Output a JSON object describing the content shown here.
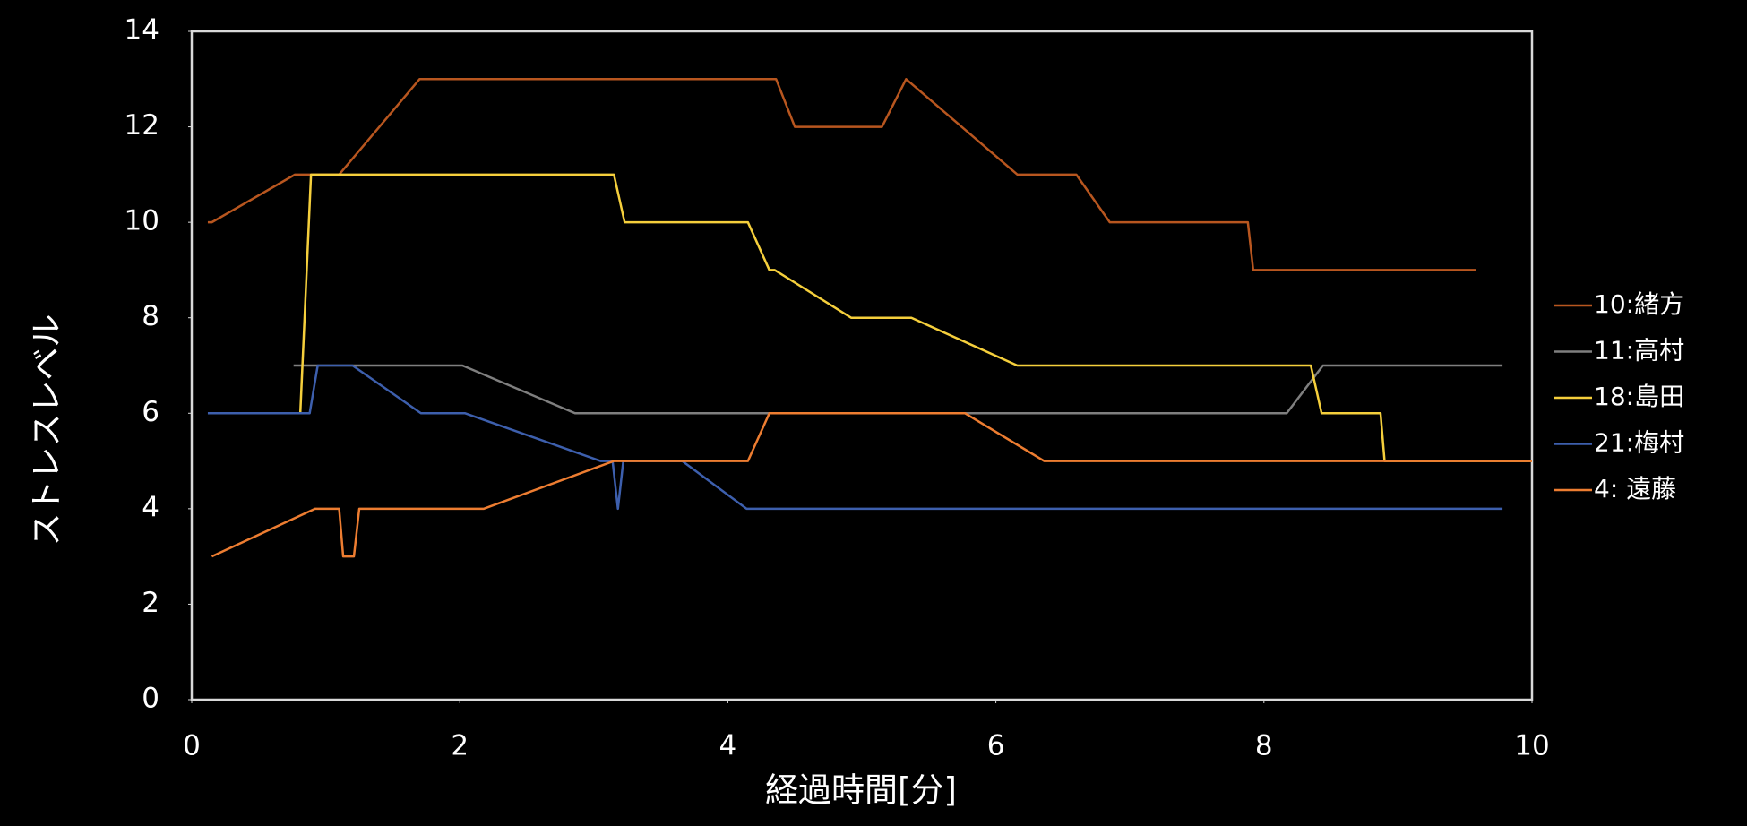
{
  "chart_data": {
    "type": "line",
    "x_label": "経過時間[分]",
    "y_label": "ストレスレベル",
    "xlim": [
      0,
      10
    ],
    "xticks": [
      0,
      2,
      4,
      6,
      8,
      10
    ],
    "ylim": [
      0,
      14
    ],
    "yticks": [
      0,
      2,
      4,
      6,
      8,
      10,
      12,
      14
    ],
    "legend": "right",
    "series": [
      {
        "name": "10:緒方",
        "color": "#b8561f",
        "x": [
          0.12,
          0.15,
          0.77,
          1.1,
          1.7,
          4.36,
          4.5,
          5.15,
          5.33,
          6.16,
          6.6,
          6.85,
          7.88,
          7.92,
          9.58
        ],
        "values": [
          10,
          10,
          11,
          11,
          13,
          13,
          12,
          12,
          13,
          11,
          11,
          10,
          10,
          9,
          9
        ]
      },
      {
        "name": "11:高村",
        "color": "#7f7f7f",
        "x": [
          0.76,
          2.02,
          2.86,
          8.17,
          8.44,
          9.78
        ],
        "values": [
          7,
          7,
          6,
          6,
          7,
          7
        ]
      },
      {
        "name": "18:島田",
        "color": "#f5cf3c",
        "x": [
          0.81,
          0.89,
          3.15,
          3.23,
          4.15,
          4.31,
          4.35,
          4.92,
          5.37,
          6.16,
          8.35,
          8.43,
          8.87,
          8.9,
          10
        ],
        "values": [
          6,
          11,
          11,
          10,
          10,
          9,
          9,
          8,
          8,
          7,
          7,
          6,
          6,
          5,
          5
        ]
      },
      {
        "name": "21:梅村",
        "color": "#3d5fad",
        "x": [
          0.12,
          0.88,
          0.94,
          1.2,
          1.71,
          2.04,
          3.05,
          3.14,
          3.18,
          3.22,
          3.66,
          4.14,
          9.78
        ],
        "values": [
          6,
          6,
          7,
          7,
          6,
          6,
          5,
          5,
          4,
          5,
          5,
          4,
          4
        ]
      },
      {
        "name": "4:  遠藤",
        "color": "#ed7d31",
        "x": [
          0.15,
          0.92,
          1.1,
          1.13,
          1.21,
          1.25,
          2.18,
          3.15,
          4.15,
          4.31,
          5.77,
          6.36,
          10
        ],
        "values": [
          3,
          4,
          4,
          3,
          3,
          4,
          4,
          5,
          5,
          6,
          6,
          5,
          5
        ]
      }
    ]
  }
}
